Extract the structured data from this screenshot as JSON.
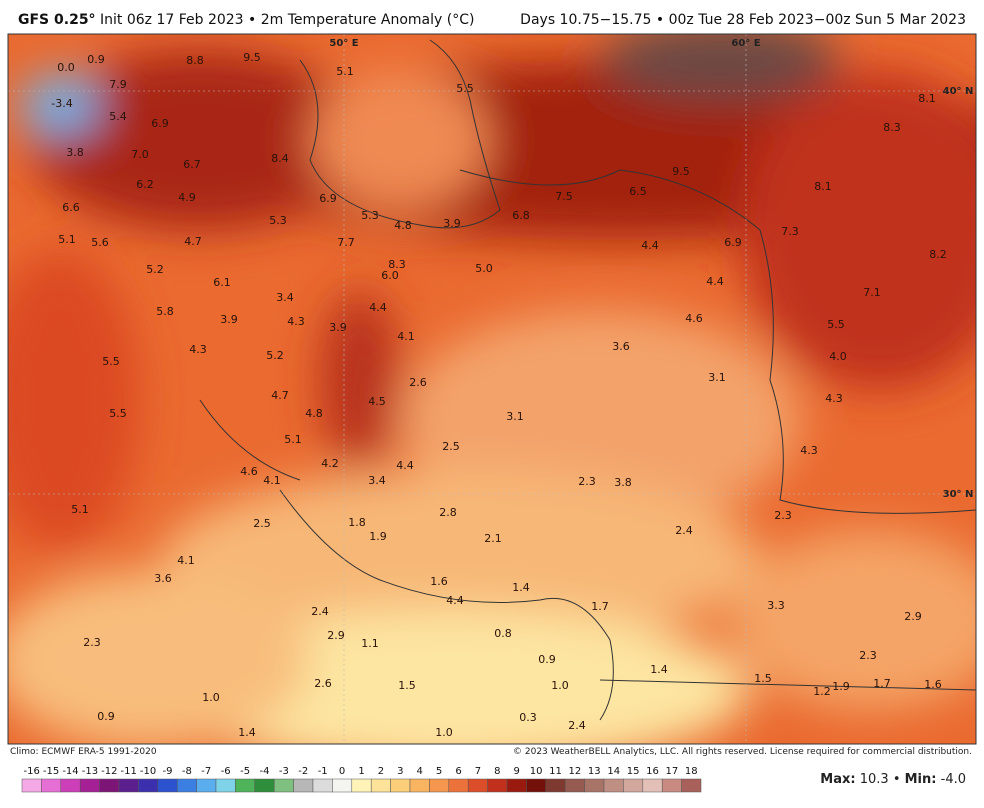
{
  "header": {
    "model": "GFS 0.25°",
    "info": "Init 06z 17 Feb 2023 • 2m Temperature Anomaly (°C)",
    "period": "Days 10.75−15.75 • 00z Tue 28 Feb 2023−00z Sun 5 Mar 2023"
  },
  "grid_labels": [
    "50° E",
    "60° E",
    "40° N",
    "30° N"
  ],
  "map_labels": [
    "0.0",
    "0.9",
    "8.8",
    "9.5",
    "5.1",
    "5.5",
    "7.9",
    "-3.4",
    "5.4",
    "6.9",
    "8.1",
    "8.3",
    "3.8",
    "7.0",
    "6.7",
    "8.4",
    "9.5",
    "6.2",
    "4.9",
    "8.1",
    "6.6",
    "6.9",
    "5.3",
    "4.8",
    "3.9",
    "6.8",
    "7.5",
    "6.5",
    "5.3",
    "5.1",
    "5.6",
    "4.7",
    "7.7",
    "7.3",
    "4.4",
    "6.9",
    "8.3",
    "6.0",
    "5.0",
    "8.2",
    "5.2",
    "6.1",
    "4.4",
    "3.4",
    "7.1",
    "4.4",
    "5.8",
    "3.9",
    "4.3",
    "3.9",
    "4.6",
    "5.5",
    "4.1",
    "4.3",
    "3.6",
    "5.2",
    "4.0",
    "5.5",
    "3.1",
    "2.6",
    "4.7",
    "4.5",
    "4.3",
    "4.8",
    "5.5",
    "3.1",
    "5.1",
    "2.5",
    "4.3",
    "4.2",
    "4.4",
    "4.6",
    "3.4",
    "4.1",
    "2.3",
    "3.8",
    "2.8",
    "5.1",
    "2.3",
    "2.5",
    "1.8",
    "2.4",
    "1.9",
    "2.1",
    "4.1",
    "3.6",
    "1.6",
    "1.4",
    "4.4",
    "1.7",
    "3.3",
    "2.4",
    "2.9",
    "0.8",
    "2.9",
    "1.1",
    "2.3",
    "0.9",
    "2.3",
    "1.4",
    "1.5",
    "2.6",
    "1.0",
    "1.5",
    "1.2",
    "1.9",
    "1.7",
    "1.6",
    "1.0",
    "0.9",
    "0.3",
    "2.4",
    "1.4",
    "1.0"
  ],
  "colorbar": {
    "ticks": [
      -16,
      -15,
      -14,
      -13,
      -12,
      -11,
      -10,
      -9,
      -8,
      -7,
      -6,
      -5,
      -4,
      -3,
      -2,
      -1,
      0,
      1,
      2,
      3,
      4,
      5,
      6,
      7,
      8,
      9,
      10,
      11,
      12,
      13,
      14,
      15,
      16,
      17,
      18
    ],
    "colors": [
      "#f5a8e6",
      "#e66fd6",
      "#cc3fb8",
      "#a51f95",
      "#7d1577",
      "#5a1f8c",
      "#3b2fae",
      "#2c52cf",
      "#3c7fe3",
      "#5aaeee",
      "#7fd3e8",
      "#4fb35a",
      "#2f8e3c",
      "#7fbf7f",
      "#b7b7b7",
      "#dcdcdc",
      "#f4f4f0",
      "#fff3b8",
      "#fde39a",
      "#fbcf7a",
      "#f8b461",
      "#f4964d",
      "#ec723c",
      "#dc4e2a",
      "#c1301c",
      "#9a1a10",
      "#74100a",
      "#7e3a30",
      "#955a50",
      "#a97468",
      "#bf8f84",
      "#d2a89e",
      "#e2c0b8",
      "#c98a82",
      "#a8605a"
    ]
  },
  "footer": {
    "climo": "Climo: ECMWF ERA-5 1991-2020",
    "copyright": "© 2023 WeatherBELL Analytics, LLC. All rights reserved. License required for commercial distribution.",
    "max_label": "Max:",
    "max": "10.3",
    "sep": "•",
    "min_label": "Min:",
    "min": "-4.0"
  }
}
